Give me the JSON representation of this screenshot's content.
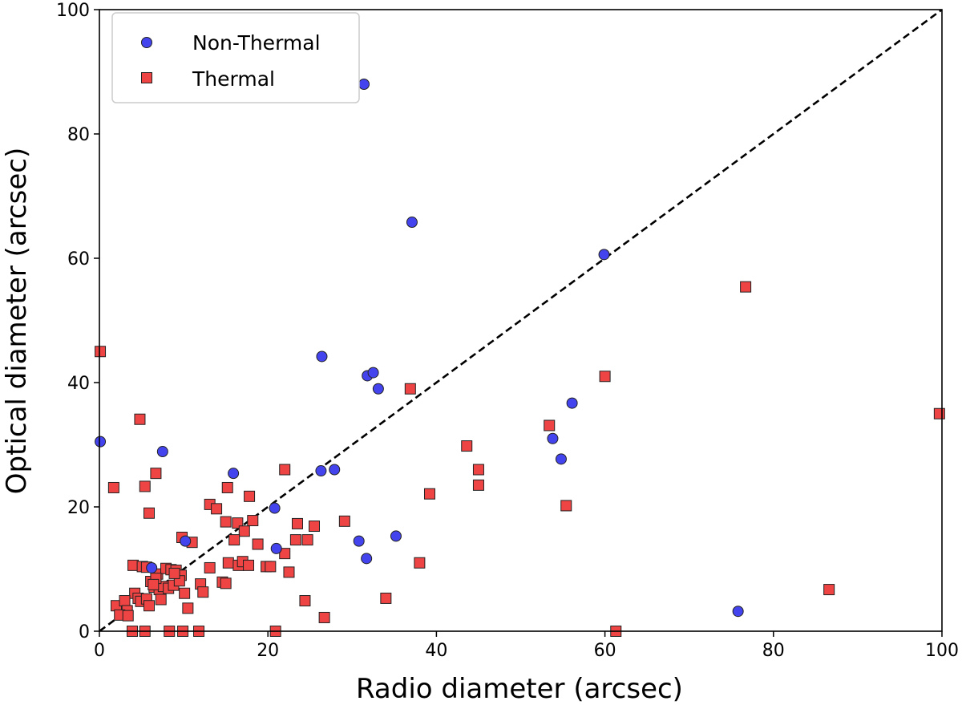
{
  "chart_data": {
    "type": "scatter",
    "xlabel": "Radio diameter (arcsec)",
    "ylabel": "Optical diameter (arcsec)",
    "xlim": [
      0,
      100
    ],
    "ylim": [
      0,
      100
    ],
    "xticks": [
      0,
      20,
      40,
      60,
      80,
      100
    ],
    "yticks": [
      0,
      20,
      40,
      60,
      80,
      100
    ],
    "grid": false,
    "legend_position": "top-left",
    "reference_line": {
      "style": "dashed",
      "color": "#000000",
      "from": [
        0,
        0
      ],
      "to": [
        100,
        100
      ]
    },
    "series": [
      {
        "name": "Non-Thermal",
        "marker": "circle",
        "color": "#4444ee",
        "points": [
          [
            31.4,
            88.0
          ],
          [
            37.1,
            65.8
          ],
          [
            59.9,
            60.6
          ],
          [
            26.4,
            44.2
          ],
          [
            31.8,
            41.1
          ],
          [
            32.5,
            41.6
          ],
          [
            33.1,
            39.0
          ],
          [
            56.1,
            36.7
          ],
          [
            53.8,
            31.0
          ],
          [
            54.8,
            27.7
          ],
          [
            0.1,
            30.5
          ],
          [
            7.5,
            28.9
          ],
          [
            15.9,
            25.4
          ],
          [
            26.3,
            25.8
          ],
          [
            27.9,
            26.0
          ],
          [
            20.8,
            19.8
          ],
          [
            21.0,
            13.3
          ],
          [
            30.8,
            14.5
          ],
          [
            31.7,
            11.7
          ],
          [
            35.2,
            15.3
          ],
          [
            10.2,
            14.5
          ],
          [
            6.2,
            10.2
          ],
          [
            75.8,
            3.2
          ]
        ]
      },
      {
        "name": "Thermal",
        "marker": "square",
        "color": "#ee4444",
        "points": [
          [
            0.1,
            45.0
          ],
          [
            4.8,
            34.1
          ],
          [
            1.7,
            23.1
          ],
          [
            5.4,
            23.3
          ],
          [
            5.9,
            19.0
          ],
          [
            6.7,
            25.4
          ],
          [
            76.7,
            55.4
          ],
          [
            60.0,
            41.0
          ],
          [
            36.9,
            39.0
          ],
          [
            99.7,
            35.0
          ],
          [
            53.4,
            33.1
          ],
          [
            43.6,
            29.8
          ],
          [
            45.0,
            26.0
          ],
          [
            45.0,
            23.5
          ],
          [
            39.2,
            22.1
          ],
          [
            55.4,
            20.2
          ],
          [
            22.0,
            26.0
          ],
          [
            15.2,
            23.1
          ],
          [
            13.1,
            20.4
          ],
          [
            17.8,
            21.7
          ],
          [
            13.9,
            19.7
          ],
          [
            15.0,
            17.6
          ],
          [
            16.4,
            17.4
          ],
          [
            17.2,
            16.1
          ],
          [
            18.2,
            17.8
          ],
          [
            23.5,
            17.3
          ],
          [
            25.5,
            16.9
          ],
          [
            29.1,
            17.7
          ],
          [
            16.0,
            14.7
          ],
          [
            18.8,
            14.0
          ],
          [
            23.3,
            14.7
          ],
          [
            24.7,
            14.7
          ],
          [
            22.0,
            12.5
          ],
          [
            15.3,
            11.0
          ],
          [
            16.5,
            10.6
          ],
          [
            17.0,
            11.2
          ],
          [
            17.7,
            10.6
          ],
          [
            19.8,
            10.4
          ],
          [
            20.3,
            10.4
          ],
          [
            22.5,
            9.5
          ],
          [
            38.0,
            11.0
          ],
          [
            34.0,
            5.3
          ],
          [
            24.4,
            4.9
          ],
          [
            26.7,
            2.2
          ],
          [
            86.6,
            6.7
          ],
          [
            61.3,
            0.0
          ],
          [
            20.9,
            0.0
          ],
          [
            11.8,
            0.0
          ],
          [
            9.9,
            0.0
          ],
          [
            8.3,
            0.0
          ],
          [
            5.4,
            0.0
          ],
          [
            3.9,
            0.0
          ],
          [
            11.0,
            14.3
          ],
          [
            9.8,
            15.1
          ],
          [
            13.1,
            10.2
          ],
          [
            14.6,
            7.9
          ],
          [
            15.0,
            7.7
          ],
          [
            12.0,
            7.6
          ],
          [
            12.3,
            6.3
          ],
          [
            10.5,
            3.7
          ],
          [
            4.0,
            10.6
          ],
          [
            5.1,
            10.4
          ],
          [
            5.6,
            10.3
          ],
          [
            6.9,
            9.2
          ],
          [
            7.9,
            10.1
          ],
          [
            8.5,
            9.9
          ],
          [
            9.1,
            9.8
          ],
          [
            9.7,
            9.0
          ],
          [
            6.1,
            8.0
          ],
          [
            6.5,
            7.1
          ],
          [
            7.1,
            6.7
          ],
          [
            7.6,
            7.2
          ],
          [
            8.2,
            6.9
          ],
          [
            8.8,
            7.4
          ],
          [
            9.5,
            8.1
          ],
          [
            4.2,
            6.1
          ],
          [
            4.6,
            5.3
          ],
          [
            4.9,
            4.8
          ],
          [
            5.6,
            5.2
          ],
          [
            5.9,
            4.1
          ],
          [
            7.3,
            5.1
          ],
          [
            10.1,
            6.1
          ],
          [
            2.0,
            4.1
          ],
          [
            3.0,
            4.9
          ],
          [
            3.3,
            3.3
          ],
          [
            2.4,
            2.6
          ],
          [
            3.4,
            2.5
          ],
          [
            6.7,
            8.5
          ],
          [
            8.9,
            9.3
          ],
          [
            6.4,
            7.5
          ]
        ]
      }
    ]
  }
}
